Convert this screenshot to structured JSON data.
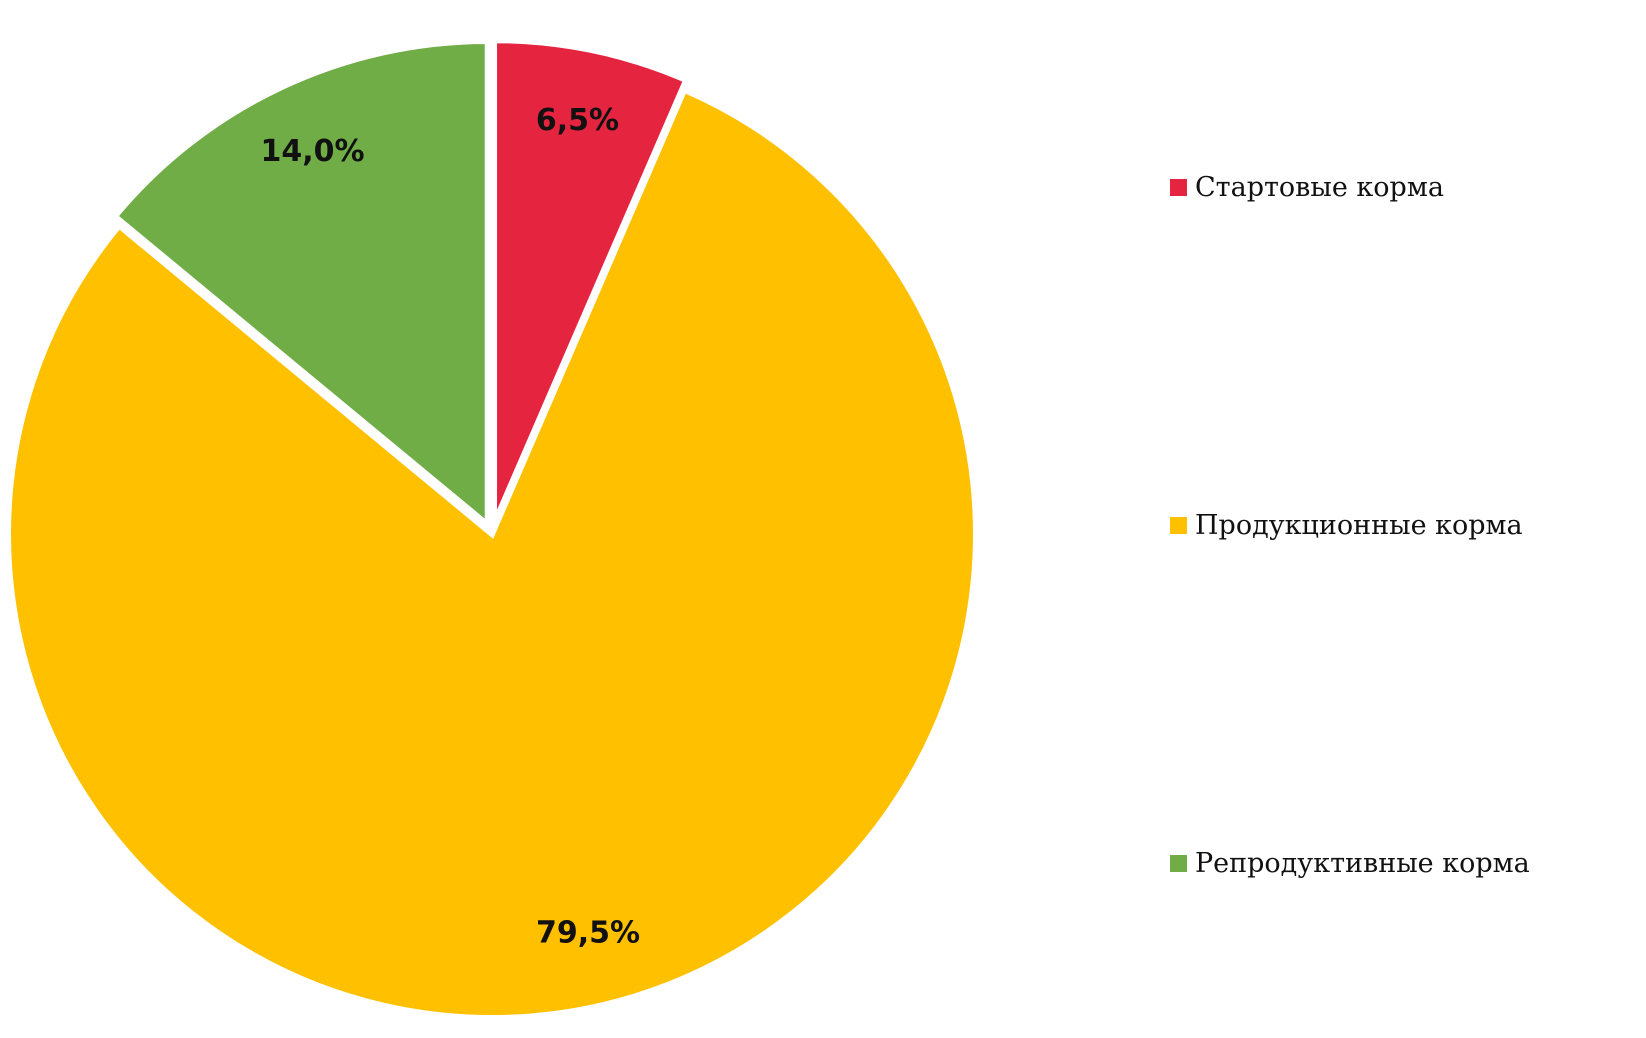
{
  "chart_data": {
    "type": "pie",
    "title": "",
    "categories": [
      "Стартовые корма",
      "Продукционные корма",
      "Репродуктивные корма"
    ],
    "values": [
      6.5,
      79.5,
      14.0
    ],
    "labels": [
      "6,5%",
      "79,5%",
      "14,0%"
    ],
    "colors": [
      "#e52440",
      "#ffc000",
      "#70ad47"
    ],
    "exploded": [
      true,
      false,
      true
    ],
    "start_angle_deg": 0,
    "direction": "clockwise",
    "legend_position": "right"
  }
}
